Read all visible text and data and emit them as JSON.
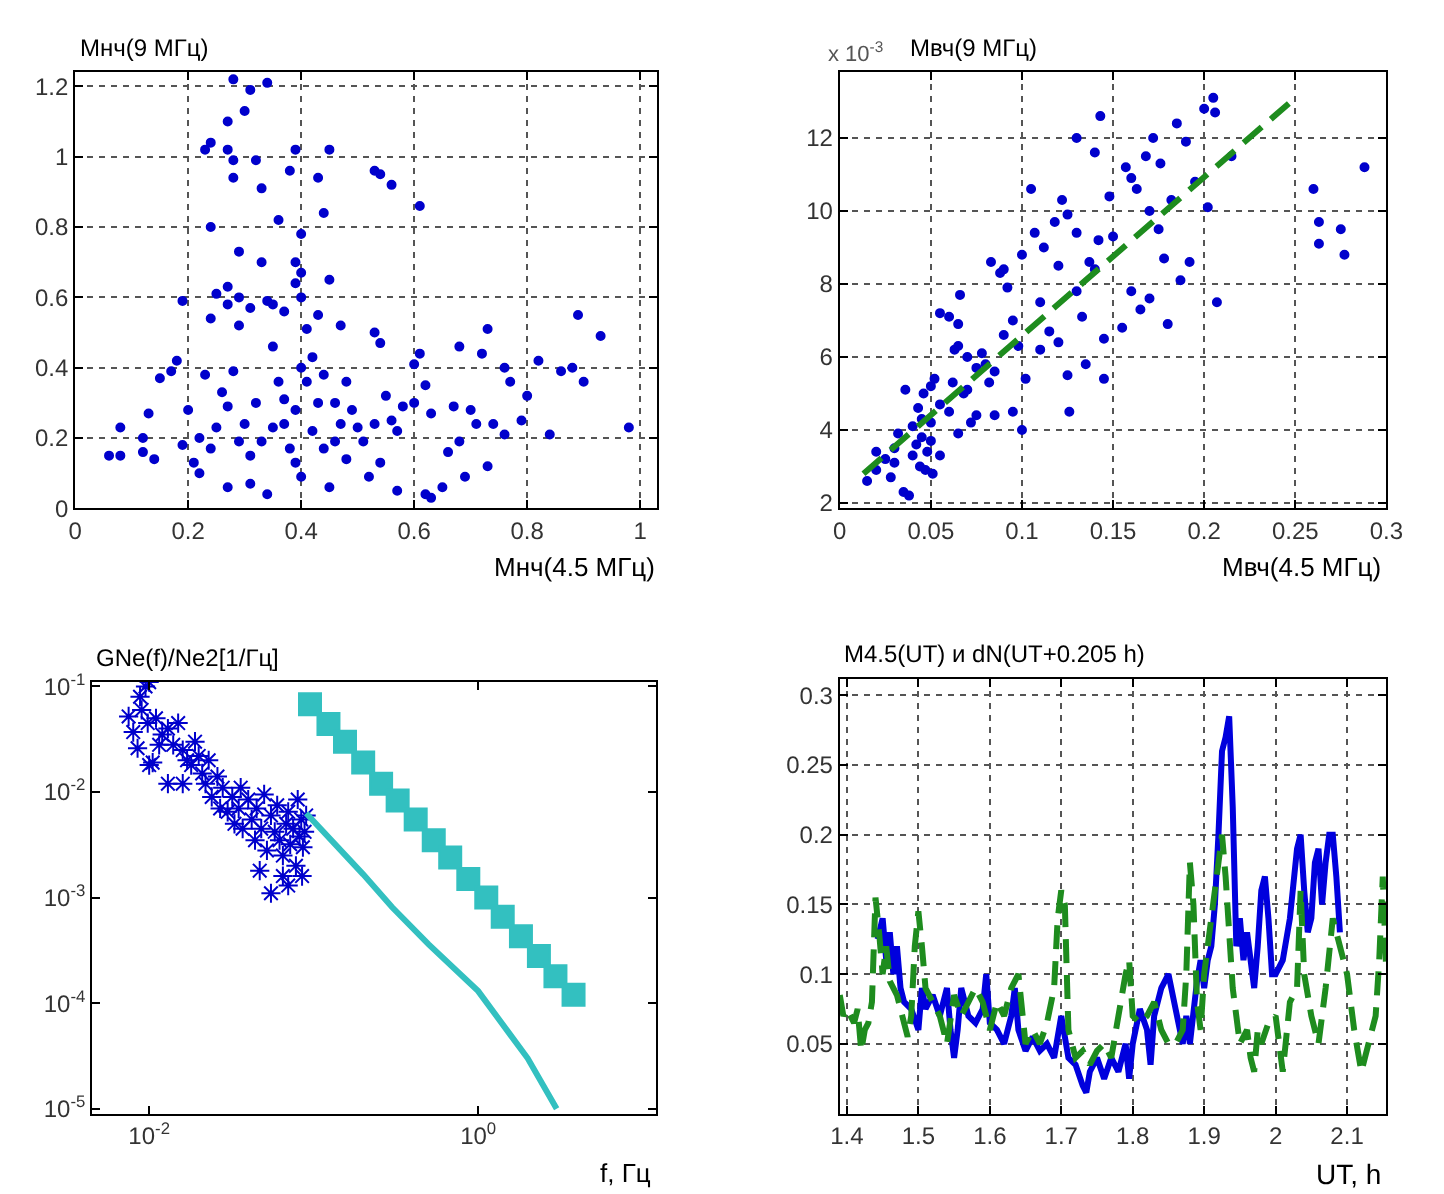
{
  "chart_data": [
    {
      "type": "scatter",
      "title": "Мнч(9 МГц)",
      "xlabel": "Мнч(4.5 МГц)",
      "marker": "circle",
      "grid": true,
      "xlim": [
        0,
        1.03
      ],
      "ylim": [
        0,
        1.24
      ],
      "xticks": [
        0,
        0.2,
        0.4,
        0.6,
        0.8,
        1
      ],
      "yticks": [
        0,
        0.2,
        0.4,
        0.6,
        0.8,
        1,
        1.2
      ],
      "series": [
        {
          "color": "#0000cc",
          "x": [
            0.28,
            0.34,
            0.31,
            0.3,
            0.27,
            0.23,
            0.24,
            0.27,
            0.28,
            0.28,
            0.32,
            0.33,
            0.38,
            0.39,
            0.43,
            0.45,
            0.44,
            0.36,
            0.24,
            0.4,
            0.53,
            0.54,
            0.56,
            0.61,
            0.29,
            0.33,
            0.39,
            0.4,
            0.39,
            0.45,
            0.27,
            0.25,
            0.19,
            0.29,
            0.34,
            0.35,
            0.31,
            0.27,
            0.24,
            0.37,
            0.4,
            0.29,
            0.41,
            0.43,
            0.47,
            0.53,
            0.54,
            0.68,
            0.73,
            0.89,
            0.93,
            0.98,
            0.9,
            0.86,
            0.88,
            0.82,
            0.84,
            0.79,
            0.8,
            0.77,
            0.76,
            0.74,
            0.76,
            0.73,
            0.71,
            0.7,
            0.72,
            0.69,
            0.68,
            0.66,
            0.65,
            0.63,
            0.62,
            0.6,
            0.6,
            0.61,
            0.62,
            0.58,
            0.57,
            0.56,
            0.55,
            0.54,
            0.53,
            0.52,
            0.51,
            0.5,
            0.49,
            0.48,
            0.47,
            0.46,
            0.45,
            0.44,
            0.43,
            0.42,
            0.41,
            0.4,
            0.39,
            0.38,
            0.37,
            0.36,
            0.35,
            0.34,
            0.33,
            0.32,
            0.31,
            0.3,
            0.29,
            0.28,
            0.27,
            0.26,
            0.25,
            0.24,
            0.23,
            0.22,
            0.21,
            0.2,
            0.19,
            0.18,
            0.17,
            0.15,
            0.14,
            0.13,
            0.12,
            0.12,
            0.08,
            0.08,
            0.06,
            0.4,
            0.42,
            0.44,
            0.46,
            0.35,
            0.37,
            0.39,
            0.31,
            0.27,
            0.22,
            0.48,
            0.57,
            0.63,
            0.67
          ],
          "values": [
            1.22,
            1.21,
            1.19,
            1.13,
            1.1,
            1.02,
            1.04,
            1.02,
            0.99,
            0.94,
            0.99,
            0.91,
            0.96,
            1.02,
            0.94,
            1.02,
            0.84,
            0.82,
            0.8,
            0.78,
            0.96,
            0.95,
            0.92,
            0.86,
            0.73,
            0.7,
            0.7,
            0.67,
            0.64,
            0.65,
            0.63,
            0.61,
            0.59,
            0.6,
            0.59,
            0.58,
            0.57,
            0.58,
            0.54,
            0.56,
            0.6,
            0.52,
            0.51,
            0.55,
            0.52,
            0.5,
            0.47,
            0.46,
            0.51,
            0.55,
            0.49,
            0.23,
            0.36,
            0.39,
            0.4,
            0.42,
            0.21,
            0.25,
            0.32,
            0.36,
            0.4,
            0.24,
            0.21,
            0.12,
            0.24,
            0.28,
            0.44,
            0.09,
            0.19,
            0.16,
            0.06,
            0.03,
            0.04,
            0.3,
            0.41,
            0.44,
            0.35,
            0.29,
            0.22,
            0.25,
            0.32,
            0.13,
            0.24,
            0.09,
            0.19,
            0.23,
            0.28,
            0.36,
            0.24,
            0.3,
            0.06,
            0.17,
            0.3,
            0.22,
            0.36,
            0.09,
            0.28,
            0.17,
            0.24,
            0.36,
            0.23,
            0.04,
            0.19,
            0.3,
            0.07,
            0.24,
            0.19,
            0.39,
            0.06,
            0.33,
            0.23,
            0.17,
            0.38,
            0.1,
            0.13,
            0.28,
            0.18,
            0.42,
            0.39,
            0.37,
            0.14,
            0.27,
            0.2,
            0.16,
            0.15,
            0.23,
            0.15,
            0.4,
            0.43,
            0.38,
            0.19,
            0.46,
            0.31,
            0.13,
            0.15,
            0.29,
            0.2,
            0.14,
            0.05,
            0.27,
            0.29
          ]
        }
      ]
    },
    {
      "type": "scatter",
      "title": "Мвч(9 МГц)",
      "xlabel": "Мвч(4.5 МГц)",
      "annotations": [
        "x 10$^{-3}$"
      ],
      "marker": "circle",
      "grid": true,
      "xlim": [
        0,
        0.3
      ],
      "ylim": [
        1.85,
        13.8
      ],
      "xticks": [
        0,
        0.05,
        0.1,
        0.15,
        0.2,
        0.25,
        0.3
      ],
      "yticks": [
        2,
        4,
        6,
        8,
        10,
        12
      ],
      "series": [
        {
          "color": "#0000cc",
          "x": [
            0.015,
            0.02,
            0.025,
            0.028,
            0.03,
            0.032,
            0.035,
            0.038,
            0.04,
            0.042,
            0.044,
            0.045,
            0.047,
            0.048,
            0.05,
            0.051,
            0.036,
            0.04,
            0.043,
            0.046,
            0.05,
            0.052,
            0.055,
            0.055,
            0.06,
            0.063,
            0.065,
            0.066,
            0.06,
            0.062,
            0.065,
            0.068,
            0.07,
            0.072,
            0.075,
            0.078,
            0.08,
            0.082,
            0.085,
            0.083,
            0.088,
            0.09,
            0.092,
            0.095,
            0.098,
            0.1,
            0.1,
            0.102,
            0.105,
            0.107,
            0.11,
            0.112,
            0.115,
            0.118,
            0.12,
            0.122,
            0.125,
            0.126,
            0.13,
            0.13,
            0.133,
            0.135,
            0.137,
            0.14,
            0.142,
            0.143,
            0.145,
            0.145,
            0.148,
            0.15,
            0.155,
            0.157,
            0.16,
            0.163,
            0.165,
            0.168,
            0.17,
            0.172,
            0.175,
            0.176,
            0.178,
            0.18,
            0.182,
            0.185,
            0.187,
            0.19,
            0.192,
            0.195,
            0.2,
            0.202,
            0.205,
            0.206,
            0.207,
            0.215,
            0.26,
            0.263,
            0.263,
            0.275,
            0.277,
            0.288,
            0.125,
            0.11,
            0.095,
            0.09,
            0.085,
            0.075,
            0.07,
            0.065,
            0.055,
            0.05,
            0.045,
            0.02,
            0.03,
            0.12,
            0.13,
            0.14,
            0.16,
            0.17
          ],
          "values": [
            2.6,
            2.9,
            3.2,
            2.7,
            3.5,
            3.9,
            2.3,
            2.2,
            3.3,
            3.6,
            3.0,
            3.8,
            2.9,
            3.4,
            3.7,
            2.8,
            5.1,
            4.1,
            4.6,
            5.0,
            4.2,
            5.4,
            4.7,
            7.2,
            7.1,
            6.2,
            6.9,
            7.7,
            4.5,
            5.3,
            3.9,
            5.0,
            6.0,
            4.2,
            5.7,
            6.1,
            5.8,
            5.3,
            4.4,
            8.6,
            8.3,
            8.4,
            7.9,
            7.0,
            6.3,
            8.8,
            4.0,
            5.4,
            10.6,
            9.4,
            7.5,
            9.0,
            6.7,
            9.7,
            8.5,
            10.3,
            5.5,
            4.5,
            12.0,
            9.4,
            7.1,
            5.8,
            8.6,
            11.6,
            9.2,
            12.6,
            6.5,
            5.4,
            10.4,
            9.3,
            6.8,
            11.2,
            7.8,
            10.6,
            7.3,
            11.5,
            10.0,
            12.0,
            9.5,
            11.3,
            8.7,
            6.9,
            10.3,
            12.4,
            8.1,
            11.9,
            8.6,
            10.8,
            12.8,
            10.1,
            13.1,
            12.7,
            7.5,
            11.5,
            10.6,
            9.7,
            9.1,
            9.5,
            8.8,
            11.2,
            9.9,
            6.2,
            4.5,
            6.6,
            5.6,
            4.4,
            5.1,
            6.3,
            3.3,
            5.2,
            4.3,
            3.4,
            3.1,
            6.4,
            7.8,
            8.4,
            10.9,
            7.6
          ]
        },
        {
          "type": "line",
          "color": "#1e8c1e",
          "line_style": "dashed",
          "marker": "none",
          "x": [
            0.013,
            0.25
          ],
          "values": [
            2.8,
            13.1
          ]
        }
      ]
    },
    {
      "type": "scatter",
      "title": "GNe(f)/Ne2[1/Гц]",
      "xlabel": "f, Гц",
      "log": "xy",
      "grid": false,
      "xlim": [
        0.0045,
        12
      ],
      "ylim": [
        9e-06,
        0.11
      ],
      "xticks": [
        {
          "value": 0.01,
          "label": "10$^{-2}$"
        },
        {
          "value": 1,
          "label": "10$^{0}$"
        }
      ],
      "yticks": [
        {
          "value": 1e-05,
          "label": "10$^{-5}$"
        },
        {
          "value": 0.0001,
          "label": "10$^{-4}$"
        },
        {
          "value": 0.001,
          "label": "10$^{-3}$"
        },
        {
          "value": 0.01,
          "label": "10$^{-2}$"
        },
        {
          "value": 0.1,
          "label": "10$^{-1}$"
        }
      ],
      "series": [
        {
          "color": "#0000cc",
          "marker": "cross",
          "x": [
            0.0075,
            0.008,
            0.0085,
            0.0088,
            0.009,
            0.0095,
            0.0098,
            0.01,
            0.0105,
            0.011,
            0.012,
            0.0115,
            0.013,
            0.014,
            0.015,
            0.016,
            0.017,
            0.016,
            0.018,
            0.019,
            0.02,
            0.021,
            0.022,
            0.023,
            0.024,
            0.026,
            0.027,
            0.028,
            0.03,
            0.032,
            0.033,
            0.035,
            0.037,
            0.036,
            0.04,
            0.042,
            0.044,
            0.045,
            0.048,
            0.05,
            0.052,
            0.055,
            0.058,
            0.06,
            0.062,
            0.065,
            0.068,
            0.07,
            0.072,
            0.075,
            0.078,
            0.08,
            0.082,
            0.084,
            0.086,
            0.088,
            0.09,
            0.085,
            0.065,
            0.055,
            0.07,
            0.047,
            0.013,
            0.01
          ],
          "values": [
            0.052,
            0.037,
            0.026,
            0.08,
            0.06,
            0.1,
            0.045,
            0.11,
            0.019,
            0.05,
            0.035,
            0.028,
            0.04,
            0.028,
            0.045,
            0.025,
            0.02,
            0.012,
            0.018,
            0.03,
            0.022,
            0.015,
            0.012,
            0.02,
            0.009,
            0.014,
            0.007,
            0.011,
            0.0065,
            0.009,
            0.005,
            0.007,
            0.0045,
            0.011,
            0.0085,
            0.0055,
            0.0035,
            0.007,
            0.0045,
            0.0095,
            0.0028,
            0.006,
            0.0042,
            0.0075,
            0.0035,
            0.0025,
            0.005,
            0.0065,
            0.0032,
            0.0045,
            0.002,
            0.0085,
            0.0038,
            0.0055,
            0.003,
            0.0042,
            0.006,
            0.0016,
            0.0016,
            0.0011,
            0.0013,
            0.0018,
            0.012,
            0.018
          ]
        },
        {
          "color": "#33c0c0",
          "marker": "square",
          "x": [
            0.095,
            0.123,
            0.155,
            0.2,
            0.257,
            0.324,
            0.417,
            0.537,
            0.676,
            0.871,
            1.12,
            1.41,
            1.82,
            2.34,
            2.95,
            3.8
          ],
          "values": [
            0.068,
            0.044,
            0.03,
            0.019,
            0.012,
            0.0083,
            0.0055,
            0.0035,
            0.0024,
            0.0015,
            0.001,
            0.00066,
            0.00043,
            0.00028,
            0.00018,
            0.00012
          ]
        },
        {
          "type": "line",
          "color": "#33c0c0",
          "marker": "none",
          "line_style": "solid",
          "x": [
            0.09,
            0.2,
            0.3,
            0.5,
            1,
            2,
            3
          ],
          "values": [
            0.0063,
            0.00166,
            0.00081,
            0.00036,
            0.00013,
            3e-05,
            1e-05
          ]
        }
      ]
    },
    {
      "type": "line",
      "title": "M4.5(UT) и dN(UT+0.205 h)",
      "xlabel": "UT, h",
      "grid": true,
      "xlim": [
        1.39,
        2.155
      ],
      "ylim": [
        0,
        0.312
      ],
      "xticks": [
        1.4,
        1.5,
        1.6,
        1.7,
        1.8,
        1.9,
        2,
        2.1
      ],
      "yticks": [
        0.05,
        0.1,
        0.15,
        0.2,
        0.25,
        0.3
      ],
      "series": [
        {
          "color": "#0000dd",
          "line_style": "solid",
          "x": [
            1.443,
            1.45,
            1.455,
            1.46,
            1.465,
            1.47,
            1.475,
            1.48,
            1.49,
            1.5,
            1.505,
            1.51,
            1.52,
            1.53,
            1.54,
            1.545,
            1.55,
            1.555,
            1.56,
            1.57,
            1.58,
            1.59,
            1.595,
            1.6,
            1.61,
            1.62,
            1.63,
            1.635,
            1.64,
            1.65,
            1.66,
            1.67,
            1.68,
            1.69,
            1.7,
            1.705,
            1.71,
            1.72,
            1.73,
            1.735,
            1.74,
            1.75,
            1.76,
            1.77,
            1.78,
            1.79,
            1.795,
            1.8,
            1.81,
            1.82,
            1.825,
            1.83,
            1.84,
            1.85,
            1.86,
            1.87,
            1.875,
            1.88,
            1.89,
            1.895,
            1.9,
            1.905,
            1.91,
            1.915,
            1.92,
            1.925,
            1.93,
            1.935,
            1.94,
            1.945,
            1.95,
            1.955,
            1.96,
            1.97,
            1.975,
            1.98,
            1.985,
            1.99,
            1.995,
            2.0,
            2.01,
            2.02,
            2.03,
            2.035,
            2.04,
            2.045,
            2.05,
            2.055,
            2.06,
            2.065,
            2.07,
            2.075,
            2.08,
            2.085,
            2.09
          ],
          "values": [
            0.125,
            0.14,
            0.11,
            0.13,
            0.1,
            0.12,
            0.09,
            0.08,
            0.075,
            0.06,
            0.09,
            0.075,
            0.085,
            0.07,
            0.09,
            0.06,
            0.04,
            0.06,
            0.09,
            0.07,
            0.065,
            0.075,
            0.1,
            0.065,
            0.06,
            0.05,
            0.07,
            0.09,
            0.06,
            0.045,
            0.055,
            0.045,
            0.05,
            0.04,
            0.07,
            0.055,
            0.04,
            0.035,
            0.02,
            0.015,
            0.03,
            0.04,
            0.025,
            0.04,
            0.03,
            0.05,
            0.025,
            0.05,
            0.075,
            0.06,
            0.035,
            0.07,
            0.09,
            0.1,
            0.075,
            0.05,
            0.07,
            0.05,
            0.095,
            0.11,
            0.09,
            0.11,
            0.12,
            0.15,
            0.2,
            0.26,
            0.27,
            0.285,
            0.22,
            0.12,
            0.14,
            0.11,
            0.13,
            0.09,
            0.12,
            0.16,
            0.17,
            0.14,
            0.1,
            0.1,
            0.11,
            0.14,
            0.19,
            0.2,
            0.16,
            0.13,
            0.14,
            0.18,
            0.19,
            0.15,
            0.18,
            0.2,
            0.2,
            0.17,
            0.13
          ]
        },
        {
          "color": "#1e8c1e",
          "line_style": "dashed",
          "x": [
            1.39,
            1.395,
            1.4,
            1.41,
            1.415,
            1.42,
            1.425,
            1.43,
            1.435,
            1.44,
            1.445,
            1.45,
            1.455,
            1.46,
            1.47,
            1.48,
            1.485,
            1.49,
            1.495,
            1.5,
            1.505,
            1.51,
            1.52,
            1.53,
            1.54,
            1.55,
            1.56,
            1.57,
            1.58,
            1.59,
            1.6,
            1.61,
            1.62,
            1.63,
            1.64,
            1.65,
            1.66,
            1.67,
            1.68,
            1.69,
            1.695,
            1.7,
            1.705,
            1.71,
            1.72,
            1.73,
            1.74,
            1.75,
            1.76,
            1.77,
            1.78,
            1.79,
            1.795,
            1.8,
            1.81,
            1.82,
            1.83,
            1.84,
            1.85,
            1.86,
            1.87,
            1.875,
            1.88,
            1.885,
            1.89,
            1.895,
            1.9,
            1.91,
            1.92,
            1.925,
            1.93,
            1.94,
            1.95,
            1.96,
            1.965,
            1.97,
            1.975,
            1.98,
            1.99,
            2.0,
            2.01,
            2.02,
            2.03,
            2.035,
            2.04,
            2.05,
            2.06,
            2.07,
            2.08,
            2.09,
            2.1,
            2.105,
            2.11,
            2.12,
            2.125,
            2.13,
            2.14,
            2.145,
            2.15,
            2.155
          ],
          "values": [
            0.085,
            0.07,
            0.075,
            0.065,
            0.075,
            0.045,
            0.06,
            0.065,
            0.08,
            0.155,
            0.13,
            0.1,
            0.12,
            0.095,
            0.085,
            0.065,
            0.055,
            0.07,
            0.12,
            0.145,
            0.12,
            0.09,
            0.08,
            0.07,
            0.05,
            0.085,
            0.07,
            0.08,
            0.09,
            0.08,
            0.06,
            0.08,
            0.07,
            0.09,
            0.1,
            0.05,
            0.06,
            0.05,
            0.065,
            0.09,
            0.14,
            0.16,
            0.15,
            0.06,
            0.04,
            0.045,
            0.035,
            0.045,
            0.05,
            0.04,
            0.07,
            0.1,
            0.11,
            0.07,
            0.065,
            0.07,
            0.08,
            0.06,
            0.05,
            0.05,
            0.06,
            0.1,
            0.18,
            0.15,
            0.08,
            0.06,
            0.1,
            0.14,
            0.18,
            0.2,
            0.17,
            0.09,
            0.05,
            0.06,
            0.04,
            0.03,
            0.06,
            0.05,
            0.065,
            0.07,
            0.03,
            0.08,
            0.09,
            0.16,
            0.1,
            0.07,
            0.05,
            0.09,
            0.14,
            0.12,
            0.1,
            0.08,
            0.06,
            0.03,
            0.04,
            0.05,
            0.07,
            0.11,
            0.17,
            0.1
          ]
        }
      ]
    }
  ]
}
